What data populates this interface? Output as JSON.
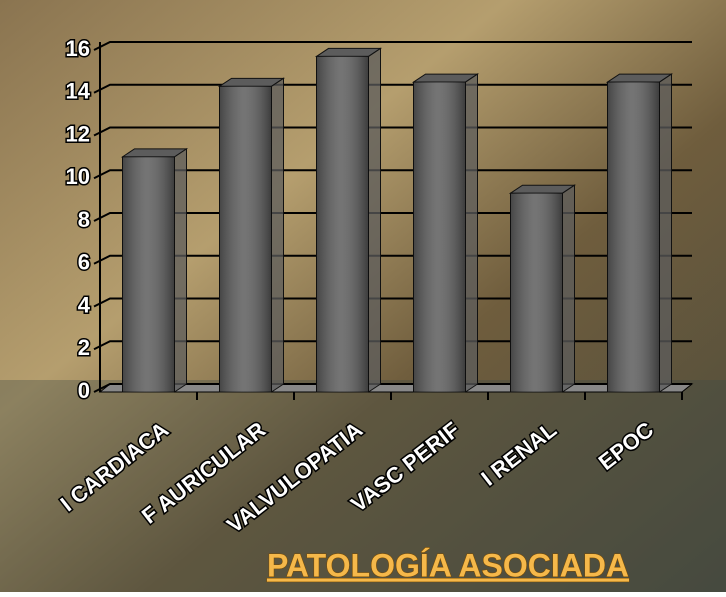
{
  "chart_data": {
    "type": "bar",
    "title": "PATOLOGÍA ASOCIADA",
    "categories": [
      "I CARDIACA",
      "F AURICULAR",
      "VALVULOPATIA",
      "VASC PERIF",
      "I RENAL",
      "EPOC"
    ],
    "values": [
      11,
      14.3,
      15.7,
      14.5,
      9.3,
      14.5
    ],
    "color": "#5c5c5c",
    "ylim": [
      0,
      16
    ],
    "yticks": [
      0,
      2,
      4,
      6,
      8,
      10,
      12,
      14,
      16
    ],
    "grid": true
  }
}
